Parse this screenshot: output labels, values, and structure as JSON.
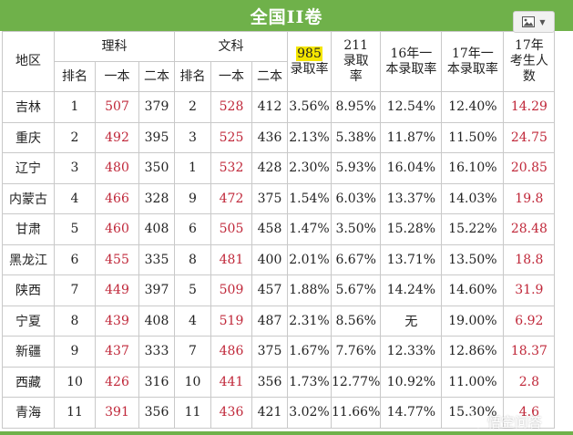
{
  "title": "全国II卷",
  "icons": {
    "image_button": "image-icon",
    "dropdown": "chevron-down-icon",
    "watermark_logo": "wechat-logo-icon"
  },
  "headers": {
    "region": "地区",
    "science": "理科",
    "arts": "文科",
    "rank": "排名",
    "tier1": "一本",
    "tier2": "二本",
    "r985_num": "985",
    "r985_rest": "录取率",
    "r211": "211录取率",
    "t16": "16年一本录取率",
    "t17": "17年一本录取率",
    "c17": "17年考生人数"
  },
  "rows": [
    {
      "region": "吉林",
      "s_rank": "1",
      "s_t1": "507",
      "s_t2": "379",
      "a_rank": "2",
      "a_t1": "528",
      "a_t2": "412",
      "r985": "3.56%",
      "r211": "8.95%",
      "t16": "12.54%",
      "t17": "12.40%",
      "c17": "14.29"
    },
    {
      "region": "重庆",
      "s_rank": "2",
      "s_t1": "492",
      "s_t2": "395",
      "a_rank": "3",
      "a_t1": "525",
      "a_t2": "436",
      "r985": "2.13%",
      "r211": "5.38%",
      "t16": "11.87%",
      "t17": "11.50%",
      "c17": "24.75"
    },
    {
      "region": "辽宁",
      "s_rank": "3",
      "s_t1": "480",
      "s_t2": "350",
      "a_rank": "1",
      "a_t1": "532",
      "a_t2": "428",
      "r985": "2.30%",
      "r211": "5.93%",
      "t16": "16.04%",
      "t17": "16.10%",
      "c17": "20.85"
    },
    {
      "region": "内蒙古",
      "s_rank": "4",
      "s_t1": "466",
      "s_t2": "328",
      "a_rank": "9",
      "a_t1": "472",
      "a_t2": "375",
      "r985": "1.54%",
      "r211": "6.03%",
      "t16": "13.37%",
      "t17": "14.03%",
      "c17": "19.8"
    },
    {
      "region": "甘肃",
      "s_rank": "5",
      "s_t1": "460",
      "s_t2": "408",
      "a_rank": "6",
      "a_t1": "505",
      "a_t2": "458",
      "r985": "1.47%",
      "r211": "3.50%",
      "t16": "15.28%",
      "t17": "15.22%",
      "c17": "28.48"
    },
    {
      "region": "黑龙江",
      "s_rank": "6",
      "s_t1": "455",
      "s_t2": "335",
      "a_rank": "8",
      "a_t1": "481",
      "a_t2": "400",
      "r985": "2.01%",
      "r211": "6.67%",
      "t16": "13.71%",
      "t17": "13.50%",
      "c17": "18.8"
    },
    {
      "region": "陕西",
      "s_rank": "7",
      "s_t1": "449",
      "s_t2": "397",
      "a_rank": "5",
      "a_t1": "509",
      "a_t2": "457",
      "r985": "1.88%",
      "r211": "5.67%",
      "t16": "14.24%",
      "t17": "14.60%",
      "c17": "31.9"
    },
    {
      "region": "宁夏",
      "s_rank": "8",
      "s_t1": "439",
      "s_t2": "408",
      "a_rank": "4",
      "a_t1": "519",
      "a_t2": "487",
      "r985": "2.31%",
      "r211": "8.56%",
      "t16": "无",
      "t17": "19.00%",
      "c17": "6.92"
    },
    {
      "region": "新疆",
      "s_rank": "9",
      "s_t1": "437",
      "s_t2": "333",
      "a_rank": "7",
      "a_t1": "486",
      "a_t2": "375",
      "r985": "1.67%",
      "r211": "7.76%",
      "t16": "12.33%",
      "t17": "12.86%",
      "c17": "18.37"
    },
    {
      "region": "西藏",
      "s_rank": "10",
      "s_t1": "426",
      "s_t2": "316",
      "a_rank": "10",
      "a_t1": "441",
      "a_t2": "356",
      "r985": "1.73%",
      "r211": "12.77%",
      "t16": "10.92%",
      "t17": "11.00%",
      "c17": "2.8"
    },
    {
      "region": "青海",
      "s_rank": "11",
      "s_t1": "391",
      "s_t2": "356",
      "a_rank": "11",
      "a_t1": "436",
      "a_t2": "421",
      "r985": "3.02%",
      "r211": "11.66%",
      "t16": "14.77%",
      "t17": "15.30%",
      "c17": "4.6"
    }
  ],
  "watermark": "悟空问答",
  "colors": {
    "banner": "#6fb14a",
    "highlight": "#f4e600",
    "red_values": "#c0283a"
  }
}
